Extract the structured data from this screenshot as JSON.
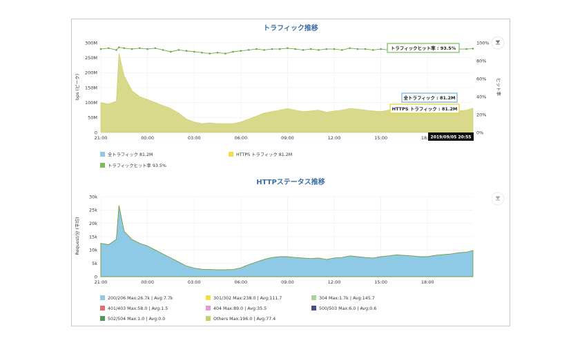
{
  "charts": [
    {
      "id": "traffic",
      "title": "トラフィック推移",
      "ylabel": "bps (ピーク)",
      "y2label": "ヒット率",
      "yticks": [
        "0",
        "50M",
        "100M",
        "150M",
        "200M",
        "250M",
        "300M"
      ],
      "y2ticks": [
        "0%",
        "20%",
        "40%",
        "60%",
        "80%",
        "100%"
      ],
      "xticks": [
        "21:00",
        "00:00",
        "03:00",
        "06:00",
        "09:00",
        "12:00",
        "15:00",
        "18:00"
      ],
      "legend": [
        {
          "label": "全トラフィック 81.2M",
          "color": "#8ec9e6"
        },
        {
          "label": "HTTPS トラフィック 81.2M",
          "color": "#f4dd4a"
        },
        {
          "label": "トラフィックヒット率 93.5%",
          "color": "#7dbb5a"
        }
      ],
      "tooltips": {
        "hit": "トラフィックヒット率 : 93.5%",
        "all": "全トラフィック : 81.2M",
        "https": "HTTPS トラフィック : 81.2M",
        "date": "2019/09/05 20:55"
      }
    },
    {
      "id": "status",
      "title": "HTTPステータス推移",
      "ylabel": "Request/分 (平均)",
      "yticks": [
        "0",
        "5k",
        "10k",
        "15k",
        "20k",
        "25k",
        "30k"
      ],
      "xticks": [
        "21:00",
        "00:00",
        "03:00",
        "06:00",
        "09:00",
        "12:00",
        "15:00",
        "18:00"
      ],
      "legend": [
        {
          "label": "200/206 Max:26.7k | Avg:7.7k",
          "color": "#8ec9e6"
        },
        {
          "label": "301/302 Max:238.0 | Avg:111.7",
          "color": "#f4dd4a"
        },
        {
          "label": "304 Max:1.7k | Avg:145.7",
          "color": "#a6d49a"
        },
        {
          "label": "401/403 Max:58.0 | Avg:1.5",
          "color": "#e07070"
        },
        {
          "label": "404 Max:89.0 | Avg:35.5",
          "color": "#e59bd0"
        },
        {
          "label": "500/503 Max:6.0 | Avg:0.6",
          "color": "#4a4f8a"
        },
        {
          "label": "502/504 Max:1.0 | Avg:0.0",
          "color": "#4e9a52"
        },
        {
          "label": "Others Max:196.0 | Avg:77.4",
          "color": "#c8cf6a"
        }
      ]
    }
  ],
  "chart_data": [
    {
      "type": "area",
      "x": [
        "21:00",
        "21:30",
        "22:00",
        "22:10",
        "22:30",
        "23:00",
        "23:30",
        "00:00",
        "00:30",
        "01:00",
        "01:30",
        "02:00",
        "02:30",
        "03:00",
        "03:30",
        "04:00",
        "04:30",
        "05:00",
        "05:30",
        "06:00",
        "06:30",
        "07:00",
        "07:30",
        "08:00",
        "08:30",
        "09:00",
        "09:30",
        "10:00",
        "10:30",
        "11:00",
        "11:30",
        "12:00",
        "12:30",
        "13:00",
        "13:30",
        "14:00",
        "14:30",
        "15:00",
        "15:30",
        "16:00",
        "16:30",
        "17:00",
        "17:30",
        "18:00",
        "18:30",
        "19:00",
        "19:30",
        "20:00",
        "20:30",
        "20:55"
      ],
      "series": [
        {
          "name": "全トラフィック",
          "values": [
            100,
            95,
            105,
            265,
            190,
            140,
            120,
            110,
            100,
            90,
            80,
            65,
            45,
            35,
            30,
            32,
            30,
            30,
            30,
            35,
            45,
            55,
            65,
            70,
            75,
            80,
            75,
            70,
            72,
            75,
            68,
            72,
            75,
            80,
            78,
            75,
            72,
            70,
            75,
            78,
            82,
            80,
            78,
            78,
            75,
            70,
            70,
            72,
            75,
            81
          ]
        },
        {
          "name": "HTTPS トラフィック",
          "values": [
            100,
            95,
            105,
            265,
            190,
            140,
            120,
            110,
            100,
            90,
            80,
            65,
            45,
            35,
            30,
            32,
            30,
            30,
            30,
            35,
            45,
            55,
            65,
            70,
            75,
            80,
            75,
            70,
            72,
            75,
            68,
            72,
            75,
            80,
            78,
            75,
            72,
            70,
            75,
            78,
            82,
            80,
            78,
            78,
            75,
            70,
            70,
            72,
            75,
            81
          ]
        },
        {
          "name": "トラフィックヒット率",
          "axis": "right",
          "values": [
            93,
            94,
            92,
            95,
            94,
            93,
            94,
            93,
            94,
            92,
            90,
            92,
            91,
            90,
            89,
            88,
            89,
            88,
            90,
            91,
            92,
            93,
            92,
            93,
            93,
            94,
            93,
            92,
            93,
            92,
            93,
            93,
            92,
            94,
            93,
            93,
            92,
            93,
            92,
            93,
            94,
            93,
            92,
            93,
            93,
            93,
            94,
            93,
            93,
            93.5
          ]
        }
      ],
      "ylabel": "bps (ピーク)",
      "ylim": [
        0,
        300
      ],
      "y2lim": [
        0,
        100
      ]
    },
    {
      "type": "area",
      "x": [
        "21:00",
        "21:30",
        "22:00",
        "22:10",
        "22:30",
        "23:00",
        "23:30",
        "00:00",
        "00:30",
        "01:00",
        "01:30",
        "02:00",
        "02:30",
        "03:00",
        "03:30",
        "04:00",
        "04:30",
        "05:00",
        "05:30",
        "06:00",
        "06:30",
        "07:00",
        "07:30",
        "08:00",
        "08:30",
        "09:00",
        "09:30",
        "10:00",
        "10:30",
        "11:00",
        "11:30",
        "12:00",
        "12:30",
        "13:00",
        "13:30",
        "14:00",
        "14:30",
        "15:00",
        "15:30",
        "16:00",
        "16:30",
        "17:00",
        "17:30",
        "18:00",
        "18:30",
        "19:00",
        "19:30",
        "20:00",
        "20:30",
        "20:55"
      ],
      "series": [
        {
          "name": "200/206",
          "values": [
            12.5,
            12,
            14,
            26.7,
            17,
            14,
            12.5,
            11.5,
            10,
            8.5,
            7,
            5.5,
            4,
            3.2,
            2.8,
            2.7,
            2.6,
            2.6,
            2.7,
            3.3,
            4.5,
            5.5,
            6.5,
            7.2,
            7.5,
            7.5,
            7.2,
            7,
            6.8,
            7,
            6.5,
            7,
            7.2,
            7.8,
            7.5,
            7.2,
            7,
            7.5,
            7.8,
            8.2,
            8,
            7.8,
            7.5,
            7.5,
            8,
            8.3,
            8.5,
            9,
            9.2,
            9.8
          ]
        }
      ],
      "ylabel": "Request/分 (平均)",
      "ylim": [
        0,
        30
      ]
    }
  ]
}
